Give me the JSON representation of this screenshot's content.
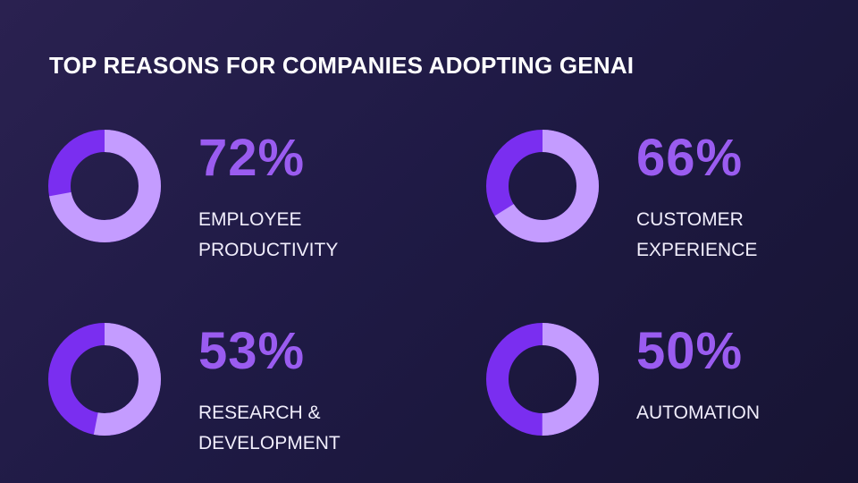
{
  "title": "TOP REASONS FOR COMPANIES ADOPTING GENAI",
  "colors": {
    "background": "#1f1a45",
    "accent_dark": "#7a2ef0",
    "accent_light": "#c49cff",
    "percent_text": "#9a5cf0"
  },
  "chart_data": {
    "type": "pie",
    "variant": "donut",
    "title": "TOP REASONS FOR COMPANIES ADOPTING GENAI",
    "categories": [
      "EMPLOYEE PRODUCTIVITY",
      "CUSTOMER EXPERIENCE",
      "RESEARCH & DEVELOPMENT",
      "AUTOMATION"
    ],
    "values": [
      72,
      66,
      53,
      50
    ],
    "unit": "%",
    "items": [
      {
        "percent": 72,
        "percent_label": "72%",
        "label_lines": [
          "EMPLOYEE",
          "PRODUCTIVITY"
        ]
      },
      {
        "percent": 66,
        "percent_label": "66%",
        "label_lines": [
          "CUSTOMER",
          "EXPERIENCE"
        ]
      },
      {
        "percent": 53,
        "percent_label": "53%",
        "label_lines": [
          "RESEARCH &",
          "DEVELOPMENT"
        ]
      },
      {
        "percent": 50,
        "percent_label": "50%",
        "label_lines": [
          "AUTOMATION"
        ]
      }
    ]
  }
}
